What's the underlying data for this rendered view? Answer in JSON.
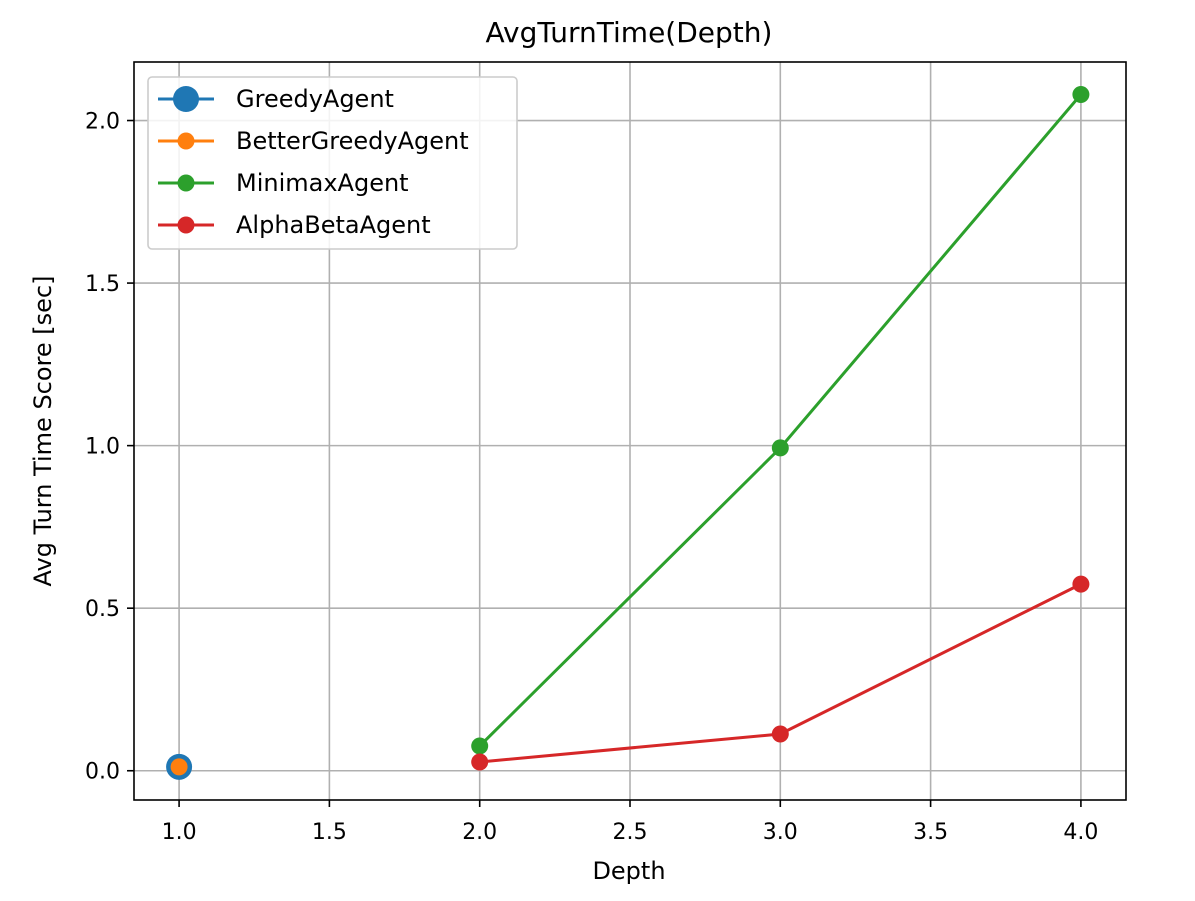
{
  "chart_data": {
    "type": "line",
    "title": "AvgTurnTime(Depth)",
    "xlabel": "Depth",
    "ylabel": "Avg Turn Time Score [sec]",
    "xlim": [
      0.85,
      4.15
    ],
    "ylim": [
      -0.09,
      2.18
    ],
    "xticks": [
      1.0,
      1.5,
      2.0,
      2.5,
      3.0,
      3.5,
      4.0
    ],
    "xtick_labels": [
      "1.0",
      "1.5",
      "2.0",
      "2.5",
      "3.0",
      "3.5",
      "4.0"
    ],
    "yticks": [
      0.0,
      0.5,
      1.0,
      1.5,
      2.0
    ],
    "ytick_labels": [
      "0.0",
      "0.5",
      "1.0",
      "1.5",
      "2.0"
    ],
    "grid": true,
    "legend_position": "top-left",
    "series": [
      {
        "name": "GreedyAgent",
        "color": "#1f77b4",
        "marker": "large-circle",
        "x": [
          1.0
        ],
        "y": [
          0.012
        ]
      },
      {
        "name": "BetterGreedyAgent",
        "color": "#ff7f0e",
        "marker": "circle",
        "x": [
          1.0
        ],
        "y": [
          0.012
        ]
      },
      {
        "name": "MinimaxAgent",
        "color": "#2ca02c",
        "marker": "circle",
        "x": [
          2.0,
          3.0,
          4.0
        ],
        "y": [
          0.076,
          0.993,
          2.08
        ]
      },
      {
        "name": "AlphaBetaAgent",
        "color": "#d62728",
        "marker": "circle",
        "x": [
          2.0,
          3.0,
          4.0
        ],
        "y": [
          0.027,
          0.113,
          0.574
        ]
      }
    ]
  }
}
